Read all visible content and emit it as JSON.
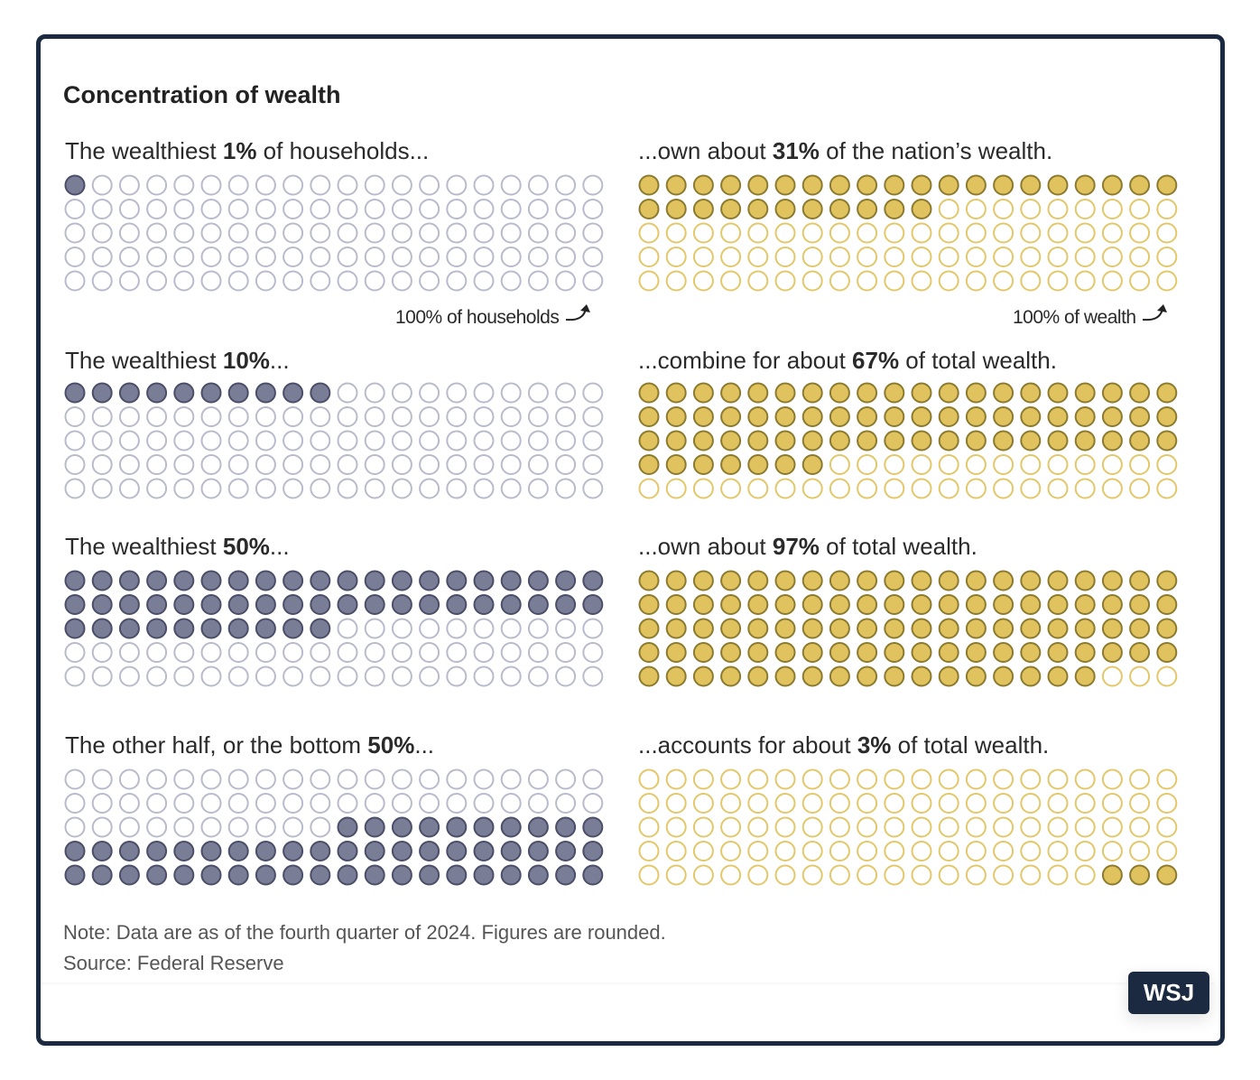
{
  "title": "Concentration of wealth",
  "colors": {
    "households_filled": "#7a7d96",
    "households_filled_stroke": "#4b4e68",
    "households_empty_stroke": "#b9bbcc",
    "wealth_filled": "#e0c25e",
    "wealth_filled_stroke": "#8c7b2f",
    "wealth_empty_stroke": "#e2c86a",
    "frame": "#1b2a40"
  },
  "annotations": {
    "households": "100% of households",
    "wealth": "100% of wealth"
  },
  "note": "Note: Data are as of the fourth quarter of 2024. Figures are rounded.",
  "source": "Source: Federal Reserve",
  "logo": "WSJ",
  "chart_data": [
    {
      "type": "waffle",
      "grid": "20x5",
      "total": 100,
      "group": "households",
      "header": {
        "pre": "The wealthiest ",
        "bold": "1%",
        "post": " of households..."
      },
      "value": 1,
      "fill_from": "start"
    },
    {
      "type": "waffle",
      "grid": "20x5",
      "total": 100,
      "group": "wealth",
      "header": {
        "pre": "...own about ",
        "bold": "31%",
        "post": " of the nation’s wealth."
      },
      "value": 31,
      "fill_from": "start"
    },
    {
      "type": "waffle",
      "grid": "20x5",
      "total": 100,
      "group": "households",
      "header": {
        "pre": "The wealthiest ",
        "bold": "10%",
        "post": "..."
      },
      "value": 10,
      "fill_from": "start"
    },
    {
      "type": "waffle",
      "grid": "20x5",
      "total": 100,
      "group": "wealth",
      "header": {
        "pre": "...combine for about ",
        "bold": "67%",
        "post": " of total wealth."
      },
      "value": 67,
      "fill_from": "start"
    },
    {
      "type": "waffle",
      "grid": "20x5",
      "total": 100,
      "group": "households",
      "header": {
        "pre": "The wealthiest ",
        "bold": "50%",
        "post": "..."
      },
      "value": 50,
      "fill_from": "start"
    },
    {
      "type": "waffle",
      "grid": "20x5",
      "total": 100,
      "group": "wealth",
      "header": {
        "pre": "...own about ",
        "bold": "97%",
        "post": " of total wealth."
      },
      "value": 97,
      "fill_from": "start"
    },
    {
      "type": "waffle",
      "grid": "20x5",
      "total": 100,
      "group": "households",
      "header": {
        "pre": "The other half, or the bottom ",
        "bold": "50%",
        "post": "..."
      },
      "value": 50,
      "fill_from": "end"
    },
    {
      "type": "waffle",
      "grid": "20x5",
      "total": 100,
      "group": "wealth",
      "header": {
        "pre": "...accounts for about ",
        "bold": "3%",
        "post": " of total wealth."
      },
      "value": 3,
      "fill_from": "end"
    }
  ]
}
